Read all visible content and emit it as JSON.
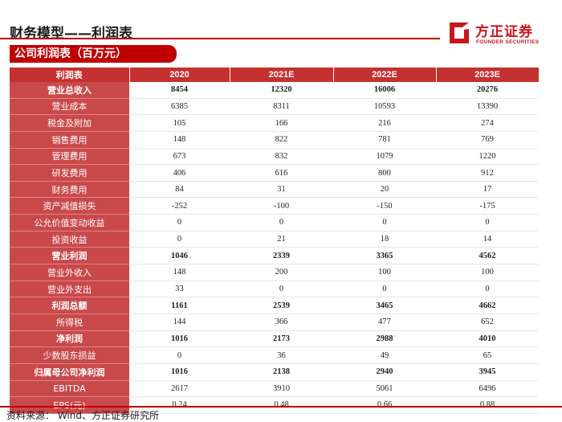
{
  "header": {
    "title": "财务模型——利润表",
    "section_label": "公司利润表（百万元）"
  },
  "logo": {
    "name_cn": "方正证券",
    "name_en": "FOUNDER SECURITIES"
  },
  "colors": {
    "brand_red": "#c00000",
    "header_fill": "#c53030",
    "label_fill": "#c9494b"
  },
  "table": {
    "columns": [
      "利润表",
      "2020",
      "2021E",
      "2022E",
      "2023E"
    ],
    "rows": [
      {
        "label": "营业总收入",
        "bold": true,
        "values": [
          "8454",
          "12320",
          "16006",
          "20276"
        ]
      },
      {
        "label": "营业成本",
        "bold": false,
        "values": [
          "6385",
          "8311",
          "10593",
          "13390"
        ]
      },
      {
        "label": "税金及附加",
        "bold": false,
        "values": [
          "105",
          "166",
          "216",
          "274"
        ]
      },
      {
        "label": "销售费用",
        "bold": false,
        "values": [
          "148",
          "822",
          "781",
          "769"
        ]
      },
      {
        "label": "管理费用",
        "bold": false,
        "values": [
          "673",
          "832",
          "1079",
          "1220"
        ]
      },
      {
        "label": "研发费用",
        "bold": false,
        "values": [
          "406",
          "616",
          "800",
          "912"
        ]
      },
      {
        "label": "财务费用",
        "bold": false,
        "values": [
          "84",
          "31",
          "20",
          "17"
        ]
      },
      {
        "label": "资产减值损失",
        "bold": false,
        "values": [
          "-252",
          "-100",
          "-150",
          "-175"
        ]
      },
      {
        "label": "公允价值变动收益",
        "bold": false,
        "values": [
          "0",
          "0",
          "0",
          "0"
        ]
      },
      {
        "label": "投资收益",
        "bold": false,
        "values": [
          "0",
          "21",
          "18",
          "14"
        ]
      },
      {
        "label": "营业利润",
        "bold": true,
        "values": [
          "1046",
          "2339",
          "3365",
          "4562"
        ]
      },
      {
        "label": "营业外收入",
        "bold": false,
        "values": [
          "148",
          "200",
          "100",
          "100"
        ]
      },
      {
        "label": "营业外支出",
        "bold": false,
        "values": [
          "33",
          "0",
          "0",
          "0"
        ]
      },
      {
        "label": "利润总额",
        "bold": true,
        "values": [
          "1161",
          "2539",
          "3465",
          "4662"
        ]
      },
      {
        "label": "所得税",
        "bold": false,
        "values": [
          "144",
          "366",
          "477",
          "652"
        ]
      },
      {
        "label": "净利润",
        "bold": true,
        "values": [
          "1016",
          "2173",
          "2988",
          "4010"
        ]
      },
      {
        "label": "少数股东损益",
        "bold": false,
        "values": [
          "0",
          "36",
          "49",
          "65"
        ]
      },
      {
        "label": "归属母公司净利润",
        "bold": true,
        "values": [
          "1016",
          "2138",
          "2940",
          "3945"
        ]
      },
      {
        "label": "EBITDA",
        "bold": false,
        "values": [
          "2617",
          "3910",
          "5061",
          "6496"
        ]
      },
      {
        "label": "EPS(元)",
        "bold": false,
        "values": [
          "0.24",
          "0.48",
          "0.66",
          "0.88"
        ]
      }
    ]
  },
  "footer": {
    "source": "资料来源： Wind、方正证券研究所"
  }
}
